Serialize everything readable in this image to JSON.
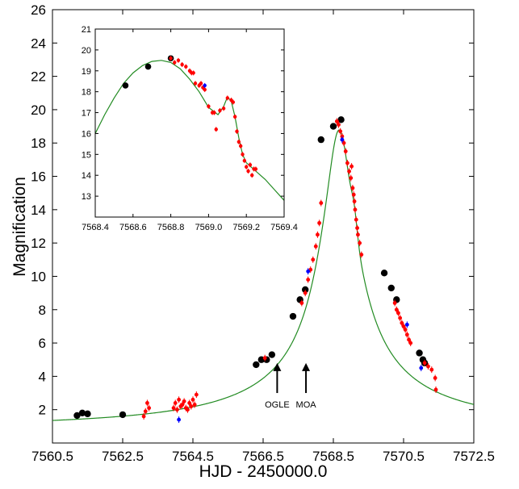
{
  "chart_data": [
    {
      "type": "scatter",
      "title": "",
      "xlabel": "HJD - 2450000.0",
      "ylabel": "Magnification",
      "xlim": [
        7560.5,
        7572.5
      ],
      "ylim": [
        0,
        26
      ],
      "xticks": [
        "7560.5",
        "7562.5",
        "7564.5",
        "7566.5",
        "7568.5",
        "7570.5",
        "7572.5"
      ],
      "yticks": [
        "2",
        "4",
        "6",
        "8",
        "10",
        "12",
        "14",
        "16",
        "18",
        "20",
        "22",
        "24",
        "26"
      ],
      "grid": false,
      "legend": "none",
      "annotations": [
        {
          "text": "OGLE",
          "x": 7566.9,
          "arrow_from_y": 3.0,
          "arrow_to_y": 4.7
        },
        {
          "text": "MOA",
          "x": 7567.72,
          "arrow_from_y": 3.0,
          "arrow_to_y": 4.7
        }
      ],
      "series": [
        {
          "role": "model",
          "color": "#228b22",
          "model": {
            "t0": 7568.65,
            "u0": 0.052,
            "tE": 8.3,
            "bumps": [
              {
                "t": 7568.5,
                "amp": -0.6,
                "w": 0.22
              },
              {
                "t": 7569.1,
                "amp": 0.9,
                "w": 0.08
              }
            ]
          },
          "x": [
            7560.5,
            7561.5,
            7562.5,
            7563.5,
            7564.5,
            7565.0,
            7565.5,
            7566.0,
            7566.5,
            7567.0,
            7567.5,
            7567.8,
            7568.0,
            7568.2,
            7568.4,
            7568.6,
            7568.8,
            7569.0,
            7569.2,
            7569.5,
            7570.0,
            7570.5,
            7571.0,
            7571.5,
            7572.0,
            7572.5
          ],
          "y": [
            1.55,
            1.65,
            1.85,
            2.15,
            2.7,
            3.1,
            3.6,
            4.3,
            5.1,
            6.5,
            8.6,
            10.6,
            12.8,
            15.4,
            18.0,
            19.4,
            19.1,
            16.9,
            14.5,
            11.5,
            8.0,
            5.9,
            4.6,
            3.8,
            3.2,
            2.85
          ]
        },
        {
          "role": "survey",
          "color": "#000000",
          "marker": "large-circle",
          "x": [
            7561.2,
            7561.35,
            7561.5,
            7562.5,
            7566.3,
            7566.45,
            7566.6,
            7566.75,
            7567.35,
            7567.55,
            7567.7,
            7568.15,
            7568.5,
            7568.72,
            7569.95,
            7570.15,
            7570.3,
            7570.95,
            7571.05,
            7571.1
          ],
          "y": [
            1.65,
            1.8,
            1.75,
            1.7,
            4.7,
            5.0,
            5.0,
            5.3,
            7.6,
            8.6,
            9.2,
            18.2,
            19.0,
            19.4,
            10.2,
            9.3,
            8.6,
            5.4,
            5.0,
            4.8
          ]
        },
        {
          "role": "followup",
          "color": "#ff0000",
          "marker": "small-dot",
          "x": [
            7563.1,
            7563.15,
            7563.2,
            7563.25,
            7563.95,
            7564.0,
            7564.05,
            7564.1,
            7564.15,
            7564.2,
            7564.25,
            7564.3,
            7564.35,
            7564.4,
            7564.45,
            7564.5,
            7564.55,
            7564.6,
            7566.55,
            7567.6,
            7567.7,
            7567.78,
            7567.85,
            7567.92,
            7568.0,
            7568.05,
            7568.1,
            7568.15,
            7568.6,
            7568.65,
            7568.7,
            7568.75,
            7568.8,
            7568.85,
            7568.9,
            7568.95,
            7569.0,
            7569.02,
            7569.05,
            7569.08,
            7569.1,
            7569.12,
            7569.15,
            7569.18,
            7569.2,
            7569.25,
            7569.3,
            7570.25,
            7570.3,
            7570.35,
            7570.4,
            7570.45,
            7570.5,
            7570.55,
            7570.6,
            7570.65,
            7570.7,
            7571.1,
            7571.2,
            7571.3,
            7571.4,
            7571.42
          ],
          "y": [
            1.6,
            1.9,
            2.4,
            2.1,
            2.1,
            2.4,
            2.0,
            2.6,
            2.2,
            2.3,
            2.5,
            2.1,
            2.0,
            2.4,
            2.2,
            2.6,
            2.3,
            2.9,
            5.1,
            8.4,
            9.0,
            9.8,
            10.4,
            11.0,
            11.8,
            12.5,
            13.2,
            14.4,
            19.3,
            19.1,
            18.7,
            18.4,
            18.0,
            17.5,
            16.8,
            16.3,
            15.9,
            16.6,
            15.3,
            14.9,
            14.5,
            14.0,
            13.4,
            12.9,
            12.5,
            12.0,
            11.3,
            8.4,
            8.0,
            7.8,
            7.5,
            7.2,
            7.0,
            6.8,
            6.5,
            6.2,
            6.0,
            4.8,
            4.6,
            4.4,
            3.9,
            3.2
          ]
        },
        {
          "role": "other",
          "color": "#0000ff",
          "marker": "small-dot",
          "x": [
            7564.1,
            7567.78,
            7568.75,
            7570.6,
            7571.0
          ],
          "y": [
            1.4,
            10.3,
            18.2,
            7.1,
            4.5
          ]
        }
      ]
    },
    {
      "type": "scatter",
      "title": "",
      "xlabel": "",
      "ylabel": "",
      "xlim": [
        7568.4,
        7569.4
      ],
      "ylim": [
        12,
        21
      ],
      "xticks": [
        "7568.4",
        "7568.6",
        "7568.8",
        "7569.0",
        "7569.2",
        "7569.4"
      ],
      "yticks": [
        "13",
        "14",
        "15",
        "16",
        "17",
        "18",
        "19",
        "20",
        "21"
      ],
      "grid": false,
      "legend": "none",
      "series": [
        {
          "role": "model",
          "color": "#228b22",
          "x": [
            7568.4,
            7568.45,
            7568.5,
            7568.55,
            7568.6,
            7568.65,
            7568.7,
            7568.75,
            7568.8,
            7568.85,
            7568.9,
            7568.95,
            7569.0,
            7569.05,
            7569.08,
            7569.1,
            7569.12,
            7569.14,
            7569.16,
            7569.18,
            7569.2,
            7569.25,
            7569.3,
            7569.35,
            7569.4
          ],
          "y": [
            16.0,
            16.9,
            17.7,
            18.4,
            18.9,
            19.25,
            19.45,
            19.5,
            19.4,
            19.1,
            18.6,
            18.0,
            17.25,
            16.9,
            17.3,
            17.75,
            17.55,
            16.8,
            15.8,
            15.0,
            14.6,
            14.2,
            13.8,
            13.3,
            12.8
          ]
        },
        {
          "role": "survey",
          "color": "#000000",
          "marker": "large-circle",
          "x": [
            7568.56,
            7568.68,
            7568.8
          ],
          "y": [
            18.3,
            19.2,
            19.6
          ]
        },
        {
          "role": "followup",
          "color": "#ff0000",
          "marker": "small-dot",
          "x": [
            7568.8,
            7568.82,
            7568.84,
            7568.86,
            7568.88,
            7568.9,
            7568.91,
            7568.92,
            7568.93,
            7568.95,
            7568.96,
            7568.97,
            7568.98,
            7569.0,
            7569.02,
            7569.03,
            7569.04,
            7569.06,
            7569.08,
            7569.1,
            7569.12,
            7569.13,
            7569.14,
            7569.15,
            7569.16,
            7569.17,
            7569.18,
            7569.19,
            7569.2,
            7569.21,
            7569.22,
            7569.23,
            7569.24,
            7569.25
          ],
          "y": [
            19.6,
            19.4,
            19.5,
            19.3,
            19.2,
            19.0,
            18.9,
            18.9,
            18.4,
            18.3,
            18.4,
            18.2,
            18.1,
            17.3,
            17.0,
            17.0,
            16.2,
            17.1,
            17.2,
            17.7,
            17.6,
            17.5,
            16.8,
            16.1,
            15.6,
            15.4,
            15.0,
            14.7,
            14.4,
            14.2,
            14.5,
            14.0,
            14.3,
            14.3
          ]
        },
        {
          "role": "other",
          "color": "#0000ff",
          "marker": "small-dot",
          "x": [
            7568.98
          ],
          "y": [
            18.3
          ]
        }
      ]
    }
  ]
}
